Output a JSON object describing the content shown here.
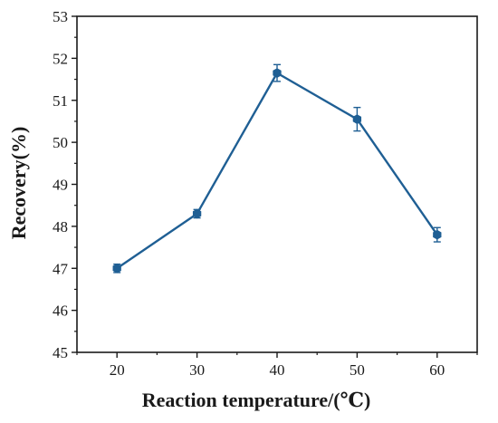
{
  "chart_data": {
    "type": "line",
    "xlabel": "Reaction temperature/(℃)",
    "ylabel": "Recovery(%)",
    "xlim": [
      15,
      65
    ],
    "ylim": [
      45,
      53
    ],
    "x_ticks": [
      "20",
      "30",
      "40",
      "50",
      "60"
    ],
    "y_ticks": [
      "45",
      "46",
      "47",
      "48",
      "49",
      "50",
      "51",
      "52",
      "53"
    ],
    "grid": false,
    "series": [
      {
        "x": [
          20,
          30,
          40,
          50,
          60
        ],
        "y": [
          47.0,
          48.3,
          51.65,
          50.55,
          47.8
        ],
        "error": [
          0.1,
          0.1,
          0.2,
          0.28,
          0.17
        ],
        "color": "#1f5f94",
        "marker": "hexagon"
      }
    ]
  }
}
